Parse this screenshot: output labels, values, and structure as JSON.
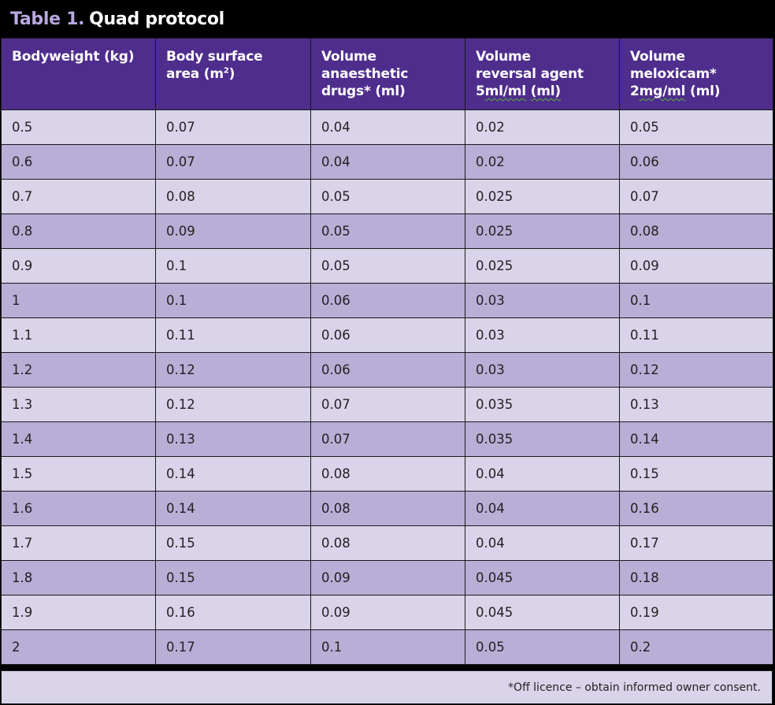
{
  "title": {
    "label": "Table 1.",
    "text": "Quad protocol"
  },
  "headers": [
    {
      "line1": "Bodyweight (kg)"
    },
    {
      "line1": "Body surface",
      "line2_pre": "area (m",
      "line2_sup": "2",
      "line2_post": ")"
    },
    {
      "line1": "Volume",
      "line2": "anaesthetic",
      "line3": "drugs* (ml)"
    },
    {
      "line1": "Volume",
      "line2": "reversal agent",
      "line3_pre": "5",
      "line3_sq1": "ml/ml",
      "line3_mid": " ",
      "line3_sq2": "(ml)"
    },
    {
      "line1": "Volume",
      "line2": "meloxicam*",
      "line3_pre": "2",
      "line3_sq1": "mg/ml",
      "line3_post": " (ml)"
    }
  ],
  "rows": [
    [
      "0.5",
      "0.07",
      "0.04",
      "0.02",
      "0.05"
    ],
    [
      "0.6",
      "0.07",
      "0.04",
      "0.02",
      "0.06"
    ],
    [
      "0.7",
      "0.08",
      "0.05",
      "0.025",
      "0.07"
    ],
    [
      "0.8",
      "0.09",
      "0.05",
      "0.025",
      "0.08"
    ],
    [
      "0.9",
      "0.1",
      "0.05",
      "0.025",
      "0.09"
    ],
    [
      "1",
      "0.1",
      "0.06",
      "0.03",
      "0.1"
    ],
    [
      "1.1",
      "0.11",
      "0.06",
      "0.03",
      "0.11"
    ],
    [
      "1.2",
      "0.12",
      "0.06",
      "0.03",
      "0.12"
    ],
    [
      "1.3",
      "0.12",
      "0.07",
      "0.035",
      "0.13"
    ],
    [
      "1.4",
      "0.13",
      "0.07",
      "0.035",
      "0.14"
    ],
    [
      "1.5",
      "0.14",
      "0.08",
      "0.04",
      "0.15"
    ],
    [
      "1.6",
      "0.14",
      "0.08",
      "0.04",
      "0.16"
    ],
    [
      "1.7",
      "0.15",
      "0.08",
      "0.04",
      "0.17"
    ],
    [
      "1.8",
      "0.15",
      "0.09",
      "0.045",
      "0.18"
    ],
    [
      "1.9",
      "0.16",
      "0.09",
      "0.045",
      "0.19"
    ],
    [
      "2",
      "0.17",
      "0.1",
      "0.05",
      "0.2"
    ]
  ],
  "footnote": "*Off licence – obtain informed owner consent.",
  "colors": {
    "header_bg": "#4f2d8c",
    "title_label": "#b9a8e0",
    "row_light": "#d9d4ea",
    "row_dark": "#b9aed6"
  }
}
